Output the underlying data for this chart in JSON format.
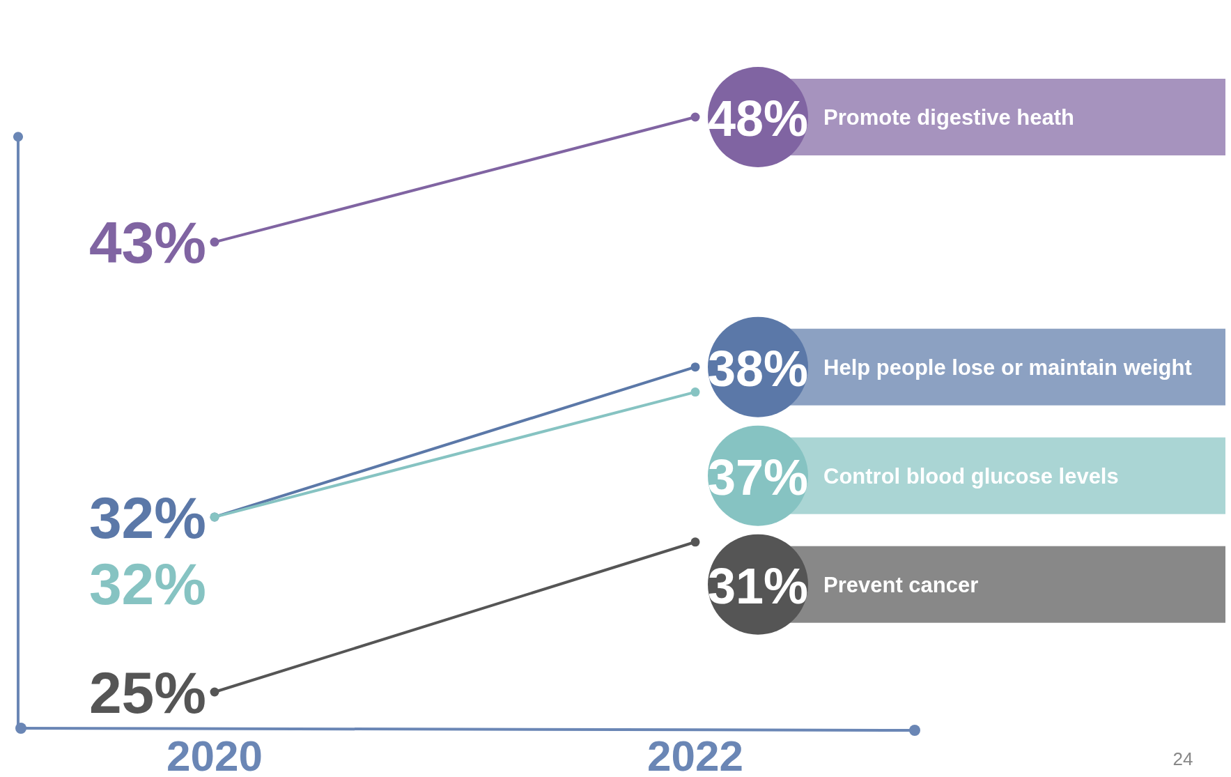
{
  "chart_data": {
    "type": "line",
    "categories": [
      "2020",
      "2022"
    ],
    "marker": "circle",
    "series": [
      {
        "name": "Promote digestive heath",
        "color": "#8064a2",
        "values": [
          43,
          48
        ],
        "value_labels": [
          "43%",
          "48%"
        ]
      },
      {
        "name": "Help people lose or maintain weight",
        "color": "#5b78a8",
        "values": [
          32,
          38
        ],
        "value_labels": [
          "32%",
          "38%"
        ]
      },
      {
        "name": "Control blood glucose levels",
        "color": "#86c3c2",
        "values": [
          32,
          37
        ],
        "value_labels": [
          "32%",
          "37%"
        ]
      },
      {
        "name": "Prevent cancer",
        "color": "#555555",
        "values": [
          25,
          31
        ],
        "value_labels": [
          "25%",
          "31%"
        ]
      }
    ],
    "annotations": [
      "24"
    ]
  }
}
